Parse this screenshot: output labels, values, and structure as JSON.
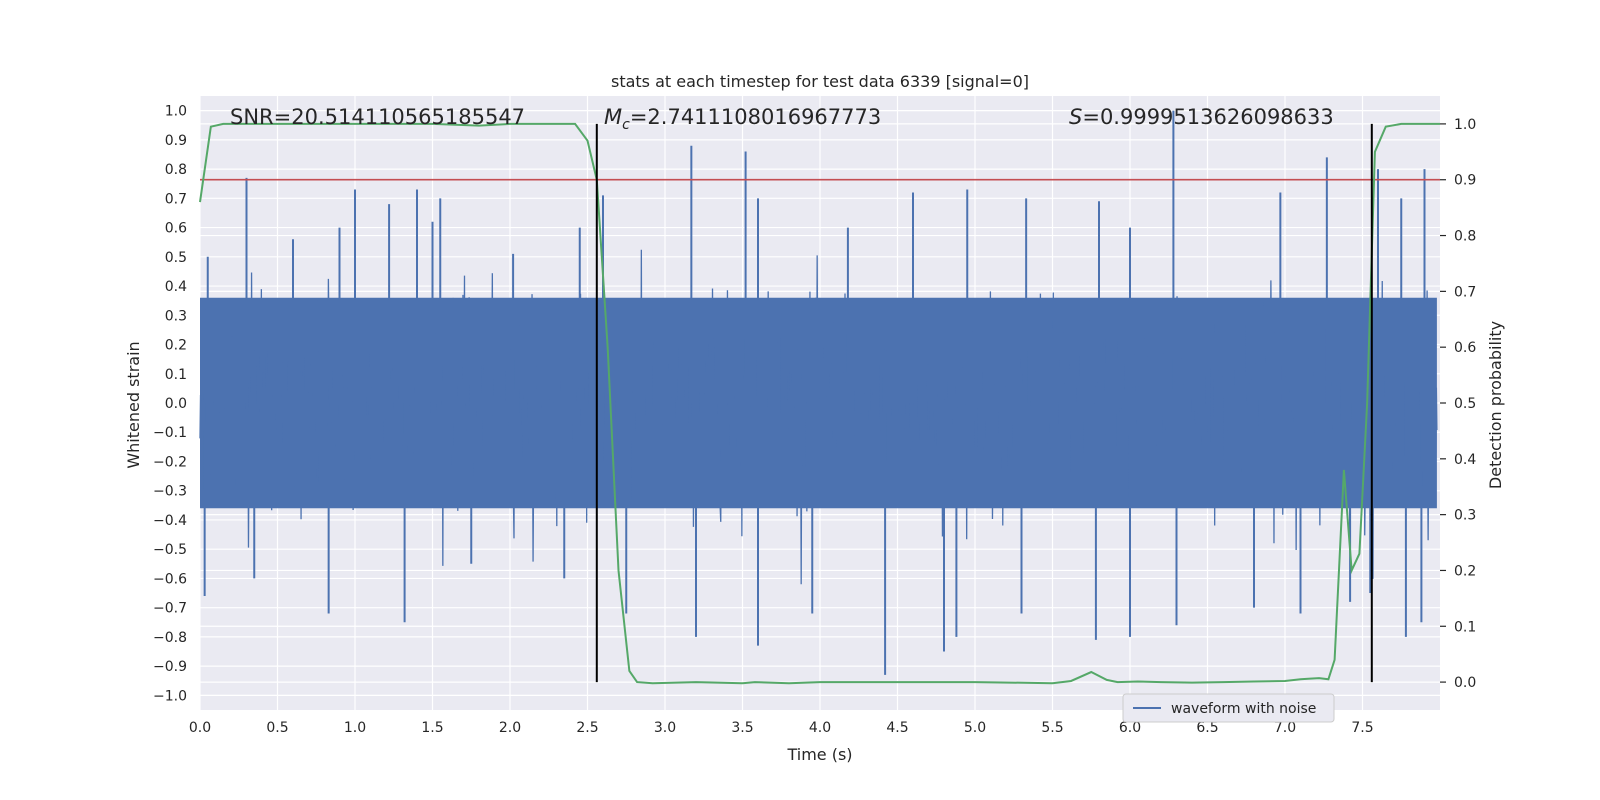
{
  "chart_data": {
    "type": "line",
    "title": "stats at each timestep for test data 6339 [signal=0]",
    "xlabel": "Time (s)",
    "ylabel": "Whitened strain",
    "y2label": "Detection probability",
    "xlim": [
      0.0,
      8.0
    ],
    "ylim": [
      -1.05,
      1.05
    ],
    "y2lim": [
      -0.05,
      1.05
    ],
    "x_ticks": [
      0.0,
      0.5,
      1.0,
      1.5,
      2.0,
      2.5,
      3.0,
      3.5,
      4.0,
      4.5,
      5.0,
      5.5,
      6.0,
      6.5,
      7.0,
      7.5
    ],
    "x_tick_labels": [
      "0.0",
      "0.5",
      "1.0",
      "1.5",
      "2.0",
      "2.5",
      "3.0",
      "3.5",
      "4.0",
      "4.5",
      "5.0",
      "5.5",
      "6.0",
      "6.5",
      "7.0",
      "7.5"
    ],
    "y_ticks": [
      1.0,
      0.9,
      0.8,
      0.7,
      0.6,
      0.5,
      0.4,
      0.3,
      0.2,
      0.1,
      0.0,
      -0.1,
      -0.2,
      -0.3,
      -0.4,
      -0.5,
      -0.6,
      -0.7,
      -0.8,
      -0.9,
      -1.0
    ],
    "y_tick_labels": [
      "1.0",
      "0.9",
      "0.8",
      "0.7",
      "0.6",
      "0.5",
      "0.4",
      "0.3",
      "0.2",
      "0.1",
      "0.0",
      "−0.1",
      "−0.2",
      "−0.3",
      "−0.4",
      "−0.5",
      "−0.6",
      "−0.7",
      "−0.8",
      "−0.9",
      "−1.0"
    ],
    "y2_ticks": [
      1.0,
      0.9,
      0.8,
      0.7,
      0.6,
      0.5,
      0.4,
      0.3,
      0.2,
      0.1,
      0.0
    ],
    "y2_tick_labels": [
      "1.0",
      "0.9",
      "0.8",
      "0.7",
      "0.6",
      "0.5",
      "0.4",
      "0.3",
      "0.2",
      "0.1",
      "0.0"
    ],
    "annotations": {
      "snr_text": "SNR=20.514110565185547",
      "mc_symbol": "M",
      "mc_sub": "c",
      "mc_value": "=2.7411108016967773",
      "s_symbol": "S",
      "s_value": "=0.9999513626098633"
    },
    "series": [
      {
        "name": "waveform with noise",
        "axis": "left",
        "color": "#4c72b0",
        "description_envelope": "noisy strain, core band about ±0.35, peaks to about 0.88 at 3.15 s and 1.0 at 6.28 s, min about -0.93 at 4.42 s",
        "peaks": [
          [
            0.05,
            0.5
          ],
          [
            0.3,
            0.77
          ],
          [
            0.6,
            0.56
          ],
          [
            0.9,
            0.6
          ],
          [
            1.0,
            0.73
          ],
          [
            1.22,
            0.68
          ],
          [
            1.4,
            0.73
          ],
          [
            1.5,
            0.62
          ],
          [
            1.55,
            0.7
          ],
          [
            2.02,
            0.51
          ],
          [
            2.45,
            0.6
          ],
          [
            2.6,
            0.71
          ],
          [
            3.17,
            0.88
          ],
          [
            3.52,
            0.86
          ],
          [
            3.6,
            0.7
          ],
          [
            4.18,
            0.6
          ],
          [
            4.6,
            0.72
          ],
          [
            4.95,
            0.73
          ],
          [
            5.33,
            0.7
          ],
          [
            5.8,
            0.69
          ],
          [
            6.0,
            0.6
          ],
          [
            6.28,
            1.0
          ],
          [
            6.97,
            0.72
          ],
          [
            7.27,
            0.84
          ],
          [
            7.6,
            0.8
          ],
          [
            7.75,
            0.7
          ],
          [
            7.9,
            0.8
          ]
        ],
        "troughs": [
          [
            0.03,
            -0.66
          ],
          [
            0.35,
            -0.6
          ],
          [
            0.83,
            -0.72
          ],
          [
            1.32,
            -0.75
          ],
          [
            1.75,
            -0.55
          ],
          [
            2.35,
            -0.6
          ],
          [
            2.75,
            -0.72
          ],
          [
            3.2,
            -0.8
          ],
          [
            3.6,
            -0.83
          ],
          [
            3.95,
            -0.72
          ],
          [
            4.42,
            -0.93
          ],
          [
            4.8,
            -0.85
          ],
          [
            4.88,
            -0.8
          ],
          [
            5.3,
            -0.72
          ],
          [
            5.78,
            -0.81
          ],
          [
            6.0,
            -0.8
          ],
          [
            6.3,
            -0.76
          ],
          [
            6.8,
            -0.7
          ],
          [
            7.1,
            -0.72
          ],
          [
            7.42,
            -0.68
          ],
          [
            7.55,
            -0.65
          ],
          [
            7.78,
            -0.8
          ],
          [
            7.88,
            -0.75
          ]
        ]
      },
      {
        "name": "detection probability",
        "axis": "right",
        "color": "#55a868",
        "x": [
          0.0,
          0.07,
          0.15,
          0.3,
          1.0,
          1.5,
          1.8,
          2.0,
          2.2,
          2.3,
          2.42,
          2.5,
          2.56,
          2.63,
          2.7,
          2.77,
          2.82,
          2.92,
          3.2,
          3.5,
          3.58,
          3.8,
          4.0,
          4.5,
          5.0,
          5.5,
          5.62,
          5.75,
          5.85,
          5.92,
          6.05,
          6.2,
          6.4,
          6.6,
          6.8,
          7.0,
          7.1,
          7.15,
          7.22,
          7.28,
          7.32,
          7.38,
          7.43,
          7.48,
          7.53,
          7.58,
          7.65,
          7.75,
          8.0
        ],
        "y": [
          0.86,
          0.995,
          1.0,
          1.0,
          1.0,
          1.0,
          0.997,
          1.0,
          1.0,
          1.0,
          1.0,
          0.97,
          0.9,
          0.6,
          0.2,
          0.02,
          0.0,
          -0.002,
          0.0,
          -0.002,
          0.0,
          -0.002,
          0.0,
          0.0,
          0.0,
          -0.002,
          0.002,
          0.018,
          0.004,
          0.0,
          0.001,
          0.0,
          -0.001,
          0.0,
          0.001,
          0.002,
          0.005,
          0.006,
          0.007,
          0.005,
          0.04,
          0.38,
          0.2,
          0.23,
          0.5,
          0.95,
          0.995,
          1.0,
          1.0
        ]
      },
      {
        "name": "threshold",
        "axis": "right",
        "color": "#c44e52",
        "value": 0.9
      }
    ],
    "vertical_lines": [
      2.56,
      7.56
    ],
    "vertical_line_color": "#000000",
    "legend": {
      "entries": [
        "waveform with noise"
      ],
      "placement": "lower-right"
    },
    "grid": true,
    "background": "#eaeaf2"
  }
}
